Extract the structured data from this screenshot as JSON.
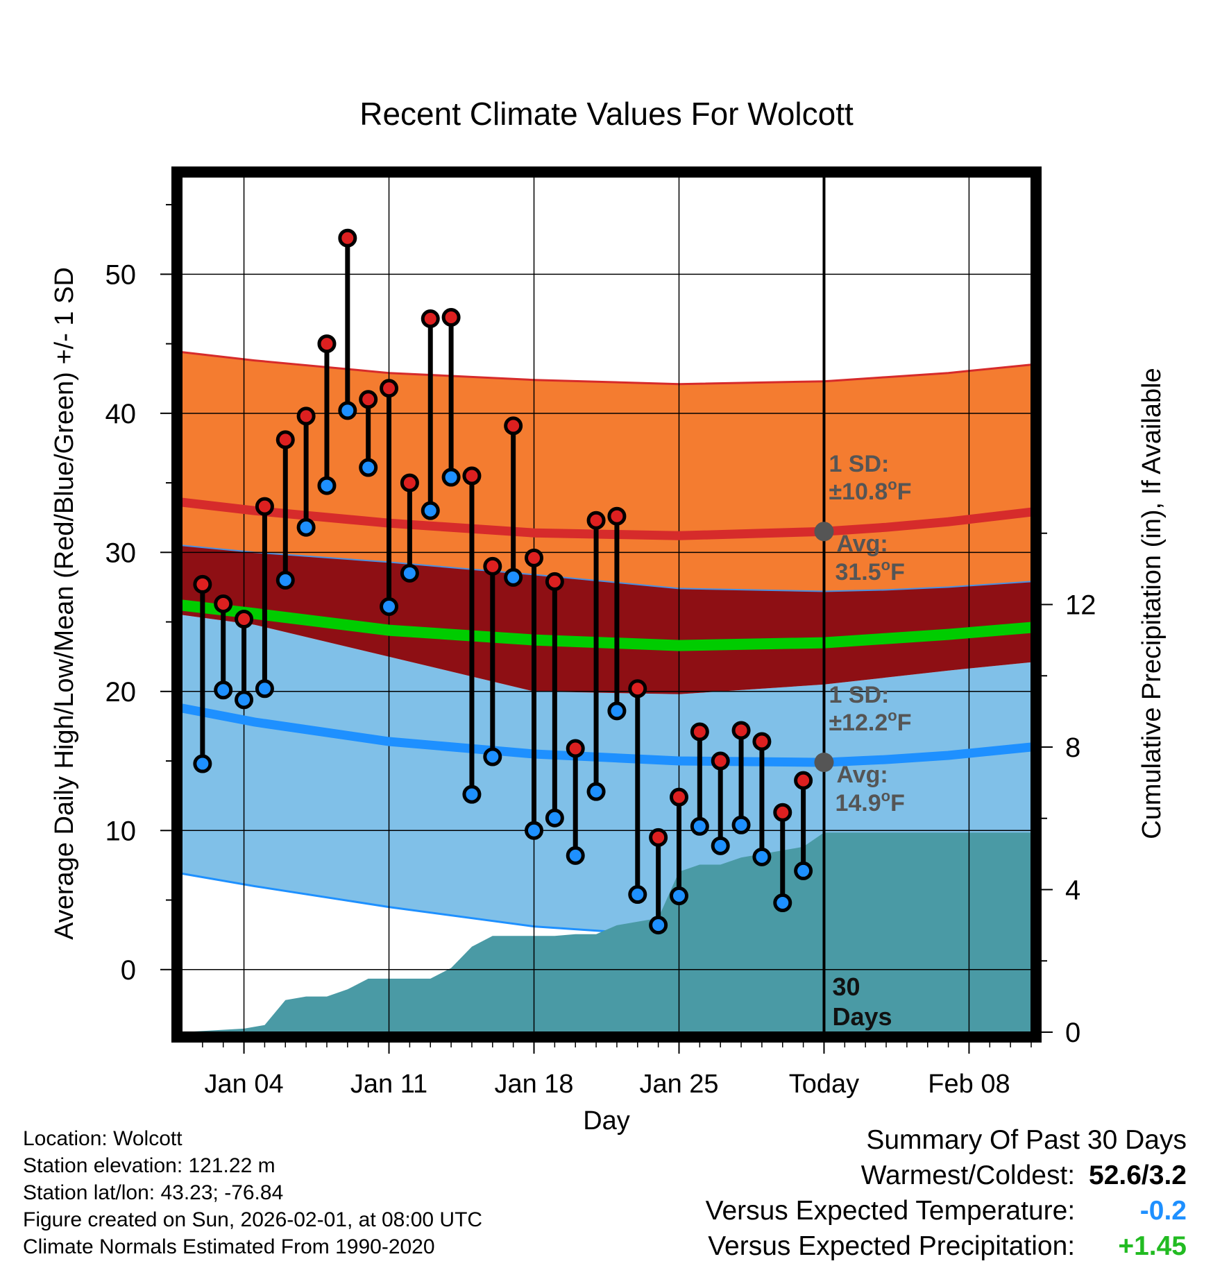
{
  "chart_data": {
    "type": "line",
    "title": "Recent Climate Values For Wolcott",
    "xlabel": "Day",
    "ylabel": "Average Daily High/Low/Mean (Red/Blue/Green) +/- 1 SD",
    "y2label": "Cumulative Precipitation (in), If Available",
    "xlim": [
      1,
      42
    ],
    "ylim": [
      -4.5,
      57
    ],
    "y2lim": [
      0,
      24
    ],
    "x_ticks": [
      {
        "x": 4,
        "label": "Jan 04"
      },
      {
        "x": 11,
        "label": "Jan 11"
      },
      {
        "x": 18,
        "label": "Jan 18"
      },
      {
        "x": 25,
        "label": "Jan 25"
      },
      {
        "x": 32,
        "label": "Today"
      },
      {
        "x": 39,
        "label": "Feb 08"
      }
    ],
    "y_ticks": [
      0,
      10,
      20,
      30,
      40,
      50
    ],
    "y2_ticks": [
      0,
      4,
      8,
      12
    ],
    "today_x": 32,
    "today_label": [
      "30",
      "Days"
    ],
    "normals": {
      "x": [
        1,
        4.5,
        11,
        18,
        25,
        32,
        35,
        38,
        42
      ],
      "high": [
        33.6,
        33.0,
        32.1,
        31.4,
        31.2,
        31.5,
        31.8,
        32.2,
        32.9
      ],
      "high_sd_upper": [
        44.4,
        43.8,
        42.9,
        42.4,
        42.1,
        42.3,
        42.6,
        42.9,
        43.5
      ],
      "high_sd_lower": [
        30.5,
        30.0,
        29.3,
        28.4,
        27.4,
        27.2,
        27.3,
        27.5,
        27.9
      ],
      "mean": [
        26.2,
        25.6,
        24.4,
        23.7,
        23.3,
        23.5,
        23.8,
        24.1,
        24.6
      ],
      "low": [
        18.8,
        17.8,
        16.4,
        15.5,
        15.0,
        14.9,
        15.1,
        15.4,
        16.0
      ],
      "low_sd_upper": [
        25.5,
        24.8,
        22.5,
        20.0,
        19.8,
        20.5,
        21.0,
        21.5,
        22.1
      ],
      "low_sd_lower": [
        6.9,
        6.0,
        4.5,
        3.1,
        2.4,
        null,
        null,
        null,
        null
      ]
    },
    "annotations": {
      "high": {
        "value": 31.5,
        "sd_label": "1 SD:",
        "sd_value": "±10.8°F",
        "avg_label": "Avg:",
        "avg_value": "31.5°F"
      },
      "low": {
        "value": 14.9,
        "sd_label": "1 SD:",
        "sd_value": "±12.2°F",
        "avg_label": "Avg:",
        "avg_value": "14.9°F"
      }
    },
    "series": [
      {
        "name": "High",
        "x": [
          2,
          3,
          4,
          5,
          6,
          7,
          8,
          9,
          10,
          11,
          12,
          13,
          14,
          15,
          16,
          17,
          18,
          19,
          20,
          21,
          22,
          23,
          24,
          25,
          26,
          27,
          28,
          29,
          30,
          31
        ],
        "values": [
          27.7,
          26.3,
          25.2,
          33.3,
          38.1,
          39.8,
          45.0,
          52.6,
          41.0,
          41.8,
          35.0,
          46.8,
          46.9,
          35.5,
          29.0,
          39.1,
          29.6,
          27.9,
          15.9,
          32.3,
          32.6,
          20.2,
          9.5,
          12.4,
          17.1,
          15.0,
          17.2,
          16.4,
          11.3,
          13.6
        ]
      },
      {
        "name": "Low",
        "x": [
          2,
          3,
          4,
          5,
          6,
          7,
          8,
          9,
          10,
          11,
          12,
          13,
          14,
          15,
          16,
          17,
          18,
          19,
          20,
          21,
          22,
          23,
          24,
          25,
          26,
          27,
          28,
          29,
          30,
          31
        ],
        "values": [
          14.8,
          20.1,
          19.4,
          20.2,
          28.0,
          31.8,
          34.8,
          40.2,
          36.1,
          26.1,
          28.5,
          33.0,
          35.4,
          12.6,
          15.3,
          28.2,
          10.0,
          10.9,
          8.2,
          12.8,
          18.6,
          5.4,
          3.2,
          5.3,
          10.3,
          8.9,
          10.4,
          8.1,
          4.8,
          7.1
        ]
      },
      {
        "name": "Cumulative Precipitation",
        "axis": "y2",
        "x": [
          1,
          4,
          5,
          6,
          7,
          8,
          9,
          10,
          11,
          12,
          13,
          14,
          15,
          16,
          17,
          18,
          19,
          20,
          21,
          22,
          23,
          24,
          25,
          26,
          27,
          28,
          29,
          30,
          31,
          32,
          42
        ],
        "values": [
          0,
          0.1,
          0.2,
          0.9,
          1.0,
          1.0,
          1.2,
          1.5,
          1.5,
          1.5,
          1.5,
          1.8,
          2.4,
          2.7,
          2.7,
          2.7,
          2.7,
          2.75,
          2.75,
          3.0,
          3.1,
          3.2,
          4.5,
          4.7,
          4.7,
          4.9,
          5.0,
          5.1,
          5.2,
          5.6,
          5.6
        ]
      }
    ]
  },
  "footer": {
    "location": "Location: Wolcott",
    "elevation": "Station elevation: 121.22 m",
    "latlon": "Station lat/lon: 43.23; -76.84",
    "created": "Figure created on Sun, 2026-02-01, at 08:00 UTC",
    "normals": "Climate Normals Estimated From 1990-2020"
  },
  "summary": {
    "title": "Summary Of Past 30 Days",
    "warmest_label": "Warmest/Coldest:",
    "warmest_value": "52.6/3.2",
    "temp_label": "Versus Expected Temperature:",
    "temp_value": "-0.2",
    "precip_label": "Versus Expected Precipitation:",
    "precip_value": "+1.45",
    "colors": {
      "temp": "#1e90ff",
      "precip": "#22bb22"
    }
  }
}
